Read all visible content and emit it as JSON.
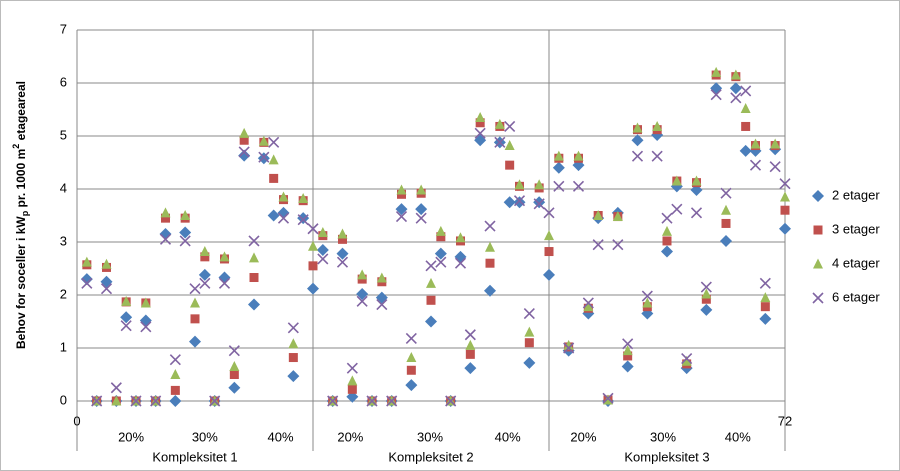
{
  "chart_data": {
    "type": "scatter",
    "ylabel": [
      "Behov for soceller i kW",
      "p",
      " pr. 1000 m",
      "2",
      " etageareal"
    ],
    "x": [
      1,
      2,
      3,
      4,
      5,
      6,
      7,
      8,
      9,
      10,
      11,
      12,
      13,
      14,
      15,
      16,
      17,
      18,
      19,
      20,
      21,
      22,
      23,
      24,
      25,
      26,
      27,
      28,
      29,
      30,
      31,
      32,
      33,
      34,
      35,
      36,
      37,
      38,
      39,
      40,
      41,
      42,
      43,
      44,
      45,
      46,
      47,
      48,
      49,
      50,
      51,
      52,
      53,
      54,
      55,
      56,
      57,
      58,
      59,
      60,
      61,
      62,
      63,
      64,
      65,
      66,
      67,
      68,
      69,
      70,
      71,
      72
    ],
    "xlim": [
      0,
      72
    ],
    "xticks": [
      0,
      72
    ],
    "ylim": [
      0,
      7
    ],
    "yticks": [
      0,
      1,
      2,
      3,
      4,
      5,
      6,
      7
    ],
    "grid": true,
    "legend": "right",
    "groups": [
      {
        "label": "Kompleksitet 1",
        "range": [
          0,
          24
        ]
      },
      {
        "label": "Kompleksitet 2",
        "range": [
          24,
          48
        ]
      },
      {
        "label": "Kompleksitet 3",
        "range": [
          48,
          72
        ]
      }
    ],
    "annotations": [
      {
        "text": "20%",
        "x": 5.5
      },
      {
        "text": "30%",
        "x": 13
      },
      {
        "text": "40%",
        "x": 20.7
      },
      {
        "text": "20%",
        "x": 27.8
      },
      {
        "text": "30%",
        "x": 35.9
      },
      {
        "text": "40%",
        "x": 43.8
      },
      {
        "text": "20%",
        "x": 51.5
      },
      {
        "text": "30%",
        "x": 59.6
      },
      {
        "text": "40%",
        "x": 67.2
      }
    ],
    "series": [
      {
        "name": "2 etager",
        "color": "#4a7ebb",
        "marker": "diamond",
        "values": [
          2.3,
          0,
          2.25,
          0,
          1.58,
          0,
          1.52,
          0,
          3.15,
          0,
          3.18,
          1.12,
          2.38,
          0,
          2.33,
          0.25,
          4.63,
          1.82,
          4.58,
          3.5,
          3.55,
          0.47,
          3.45,
          2.12,
          2.85,
          0,
          2.78,
          0.08,
          2.02,
          0,
          1.95,
          0,
          3.62,
          0.3,
          3.62,
          1.5,
          2.78,
          0,
          2.72,
          0.62,
          4.92,
          2.08,
          4.88,
          3.75,
          3.75,
          0.72,
          3.75,
          2.38,
          4.4,
          0.95,
          4.45,
          1.65,
          3.45,
          0,
          3.55,
          0.65,
          4.92,
          1.65,
          5.02,
          2.82,
          4.05,
          0.62,
          3.98,
          1.72,
          5.9,
          3.02,
          5.9,
          4.72,
          4.72,
          1.55,
          4.75,
          3.25
        ]
      },
      {
        "name": "3 etager",
        "color": "#c0504d",
        "marker": "square",
        "values": [
          2.57,
          0,
          2.52,
          0,
          1.87,
          0,
          1.85,
          0,
          3.45,
          0.2,
          3.45,
          1.55,
          2.72,
          0,
          2.68,
          0.5,
          4.92,
          2.33,
          4.88,
          4.2,
          3.8,
          0.82,
          3.78,
          2.55,
          3.12,
          0,
          3.05,
          0.22,
          2.3,
          0,
          2.25,
          0,
          3.9,
          0.58,
          3.92,
          1.9,
          3.1,
          0,
          3.02,
          0.88,
          5.25,
          2.6,
          5.18,
          4.45,
          4.05,
          1.1,
          4.02,
          2.82,
          4.58,
          1.02,
          4.58,
          1.75,
          3.5,
          0.02,
          3.48,
          0.85,
          5.12,
          1.78,
          5.12,
          3.02,
          4.15,
          0.7,
          4.12,
          1.92,
          6.15,
          3.35,
          6.12,
          5.18,
          4.82,
          1.78,
          4.82,
          3.6
        ]
      },
      {
        "name": "4 etager",
        "color": "#9bbb59",
        "marker": "triangle",
        "values": [
          2.62,
          0,
          2.58,
          0,
          1.88,
          0,
          1.85,
          0,
          3.55,
          0.5,
          3.5,
          1.85,
          2.82,
          0,
          2.72,
          0.65,
          5.05,
          2.7,
          4.9,
          4.55,
          3.85,
          1.08,
          3.82,
          2.92,
          3.18,
          0,
          3.15,
          0.38,
          2.38,
          0,
          2.32,
          0,
          3.98,
          0.82,
          3.98,
          2.22,
          3.2,
          0,
          3.08,
          1.05,
          5.35,
          2.9,
          5.22,
          4.82,
          4.08,
          1.3,
          4.08,
          3.12,
          4.62,
          1.05,
          4.62,
          1.78,
          3.5,
          0.02,
          3.48,
          0.95,
          5.15,
          1.85,
          5.18,
          3.2,
          4.15,
          0.75,
          4.15,
          2.02,
          6.2,
          3.6,
          6.15,
          5.52,
          4.85,
          1.95,
          4.85,
          3.85
        ]
      },
      {
        "name": "6 etager",
        "color": "#8064a2",
        "marker": "x",
        "values": [
          2.22,
          0,
          2.12,
          0.25,
          1.42,
          0,
          1.4,
          0,
          3.05,
          0.78,
          3.02,
          2.12,
          2.22,
          0,
          2.22,
          0.95,
          4.7,
          3.02,
          4.6,
          4.88,
          3.45,
          1.38,
          3.42,
          3.25,
          2.68,
          0,
          2.62,
          0.62,
          1.88,
          0,
          1.82,
          0,
          3.48,
          1.18,
          3.45,
          2.55,
          2.62,
          0,
          2.6,
          1.25,
          5.05,
          3.3,
          4.88,
          5.18,
          3.78,
          1.65,
          3.72,
          3.55,
          4.05,
          1.0,
          4.05,
          1.85,
          2.95,
          0.05,
          2.95,
          1.08,
          4.62,
          1.98,
          4.62,
          3.45,
          3.62,
          0.8,
          3.55,
          2.15,
          5.78,
          3.92,
          5.72,
          5.85,
          4.45,
          2.22,
          4.42,
          4.1
        ]
      }
    ]
  }
}
